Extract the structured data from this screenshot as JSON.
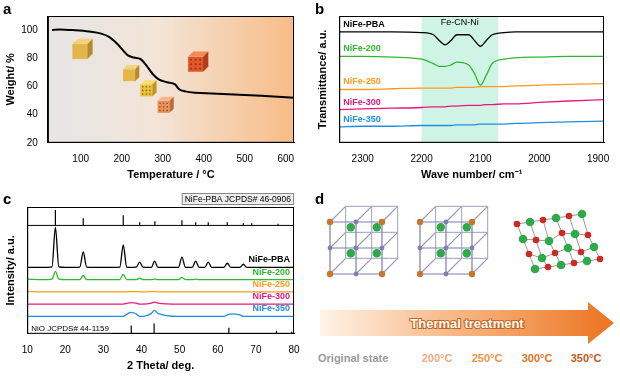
{
  "chart_data": [
    {
      "panel": "a",
      "type": "line",
      "x_label": "Temperature / °C",
      "y_label": "Weight/ %",
      "x": [
        30,
        50,
        80,
        120,
        150,
        170,
        190,
        205,
        215,
        230,
        245,
        260,
        275,
        290,
        310,
        330,
        340,
        355,
        380,
        420,
        500,
        560,
        620
      ],
      "values": [
        100,
        100.5,
        100,
        99,
        97.5,
        95,
        90,
        85,
        82,
        80.5,
        79.5,
        75,
        69,
        65,
        63,
        61.5,
        58,
        56.5,
        55.5,
        55,
        54,
        53,
        52
      ],
      "color": "#000000",
      "xlim": [
        20,
        620
      ],
      "xticks": [
        100,
        200,
        300,
        400,
        500,
        600
      ],
      "ylim": [
        20,
        110
      ],
      "yticks": [
        20,
        40,
        60,
        80,
        100
      ],
      "grid": false
    },
    {
      "panel": "b",
      "type": "line",
      "x_label": "Wave number/ cm⁻¹",
      "y_label": "Transmittance/ a.u.",
      "x": [
        2340,
        2300,
        2250,
        2200,
        2180,
        2170,
        2160,
        2150,
        2140,
        2120,
        2110,
        2100,
        2090,
        2080,
        2060,
        2040,
        2000,
        1950,
        1890
      ],
      "series": [
        {
          "name": "NiFe-PBA",
          "color": "#000000",
          "values": [
            97,
            97,
            97,
            96.5,
            95,
            91,
            88,
            91,
            95,
            95,
            91,
            87,
            91,
            95,
            96.5,
            97,
            97,
            97,
            97
          ]
        },
        {
          "name": "NiFe-200",
          "color": "#2db82d",
          "values": [
            80,
            80,
            79.5,
            78,
            75,
            73,
            73,
            74,
            76,
            74,
            68,
            60,
            67,
            75,
            78,
            79,
            79.5,
            80,
            80
          ]
        },
        {
          "name": "NiFe-250",
          "color": "#ff9a1f",
          "values": [
            57,
            57,
            57.5,
            58,
            58,
            58,
            58,
            58,
            58.5,
            58.5,
            58.5,
            59,
            59,
            59,
            59,
            59.5,
            60,
            60.5,
            61
          ]
        },
        {
          "name": "NiFe-300",
          "color": "#e6197f",
          "values": [
            43,
            43.5,
            44,
            44.5,
            45,
            45,
            45,
            45.5,
            45.5,
            46,
            46,
            46,
            46.5,
            46.5,
            47,
            47,
            48,
            49,
            50
          ]
        },
        {
          "name": "NiFe-350",
          "color": "#1e8fe0",
          "values": [
            31,
            31.5,
            31.5,
            32,
            32,
            32,
            32,
            32,
            32.5,
            32.5,
            32.5,
            33,
            33,
            33,
            33,
            33.5,
            34,
            34.5,
            35
          ]
        }
      ],
      "xlim": [
        2340,
        1890
      ],
      "xticks": [
        2300,
        2200,
        2100,
        2000,
        1900
      ],
      "ylim": [
        20,
        108
      ],
      "tick_labels": "x",
      "grid": false,
      "annotations": [
        {
          "text": "Fe-CN-Ni",
          "x_range": [
            2200,
            2070
          ]
        }
      ]
    },
    {
      "panel": "c",
      "type": "line",
      "x_label": "2 Theta/ deg.",
      "y_label": "Intensity/ a.u.",
      "x": [
        10,
        14,
        16.5,
        17.4,
        18.3,
        20,
        23.8,
        24.7,
        25.6,
        30,
        34.3,
        35.2,
        36.1,
        37.3,
        38.6,
        39.5,
        40.4,
        42.6,
        43.4,
        44.3,
        49.7,
        50.6,
        51.5,
        53.3,
        54.2,
        55.1,
        56.6,
        57.5,
        58.4,
        61.6,
        62.5,
        63.4,
        65.8,
        66.7,
        67.6,
        72,
        76,
        80
      ],
      "series": [
        {
          "name": "NiFe-PBA",
          "color": "#000000",
          "values": [
            65,
            65,
            65.5,
            104,
            65.5,
            65,
            65.3,
            80,
            65.3,
            65,
            65.3,
            87,
            65.3,
            65,
            65.2,
            70,
            65.2,
            65,
            71,
            65,
            65,
            75,
            65,
            65,
            71,
            65,
            65,
            70,
            65,
            65,
            69,
            65,
            65,
            68,
            65,
            65,
            65,
            65
          ]
        },
        {
          "name": "NiFe-200",
          "color": "#2db82d",
          "values": [
            53.5,
            53,
            53.5,
            61,
            53.5,
            53,
            53,
            57,
            53,
            53,
            53,
            58,
            53,
            53,
            53,
            54.5,
            53,
            53,
            53.5,
            53,
            53,
            55,
            53,
            53,
            53.5,
            53,
            53,
            53,
            53,
            53,
            53,
            53,
            53,
            53,
            53,
            53,
            53,
            53
          ]
        },
        {
          "name": "NiFe-250",
          "color": "#ff9a1f",
          "values": [
            41.5,
            41,
            41,
            41,
            41,
            41,
            41,
            41,
            41,
            41,
            41,
            41,
            41,
            41.3,
            41.3,
            41,
            41,
            41.3,
            41.4,
            41,
            41,
            41,
            41,
            41,
            41,
            41,
            41,
            41,
            41,
            41,
            41,
            41,
            41,
            41,
            41,
            41,
            41,
            41
          ]
        },
        {
          "name": "NiFe-300",
          "color": "#e6197f",
          "values": [
            29,
            29,
            29,
            29,
            29,
            29,
            29,
            29,
            29,
            29,
            29,
            29,
            29.8,
            30.5,
            30,
            29,
            29,
            30,
            31,
            30,
            29,
            29,
            29,
            29,
            29,
            29,
            29,
            29,
            29,
            29,
            29,
            29,
            29,
            29,
            29,
            29,
            29,
            29
          ]
        },
        {
          "name": "NiFe-350",
          "color": "#1e8fe0",
          "values": [
            17,
            17,
            17,
            17,
            17,
            17,
            17,
            17,
            17,
            17,
            17,
            17,
            19,
            21,
            19.5,
            17,
            17,
            20,
            23,
            20,
            17,
            17,
            17,
            17,
            17,
            17,
            17,
            17,
            17,
            17,
            18.5,
            19.5,
            18.5,
            17,
            17,
            17,
            17,
            17
          ]
        }
      ],
      "references": [
        {
          "name": "NiFe-PBA JCPDS# 46-0906",
          "baseline": 106,
          "x": [
            17.4,
            24.7,
            35.2,
            39.5,
            43.5,
            50.6,
            54.2,
            57.5,
            62.5,
            66.7,
            68.9,
            75.8
          ],
          "values": [
            15,
            7,
            10,
            3,
            4,
            5,
            3,
            3,
            3,
            2,
            2,
            1.5
          ]
        },
        {
          "name": "NiO JCPDS# 44-1159",
          "baseline": 0,
          "x": [
            37.3,
            43.3,
            62.9,
            75.4,
            79.4
          ],
          "values": [
            8,
            10,
            6,
            3,
            2
          ]
        }
      ],
      "xlim": [
        10,
        80
      ],
      "xticks": [
        10,
        20,
        30,
        40,
        50,
        60,
        70,
        80
      ],
      "ylim": [
        0,
        124
      ],
      "tick_labels": "x",
      "grid": false
    }
  ],
  "diagram": {
    "panel": "d",
    "type": "diagram",
    "arrow_text": "Thermal treatment",
    "stages": [
      "Original state",
      "200°C",
      "250°C",
      "300°C",
      "350°C"
    ]
  }
}
